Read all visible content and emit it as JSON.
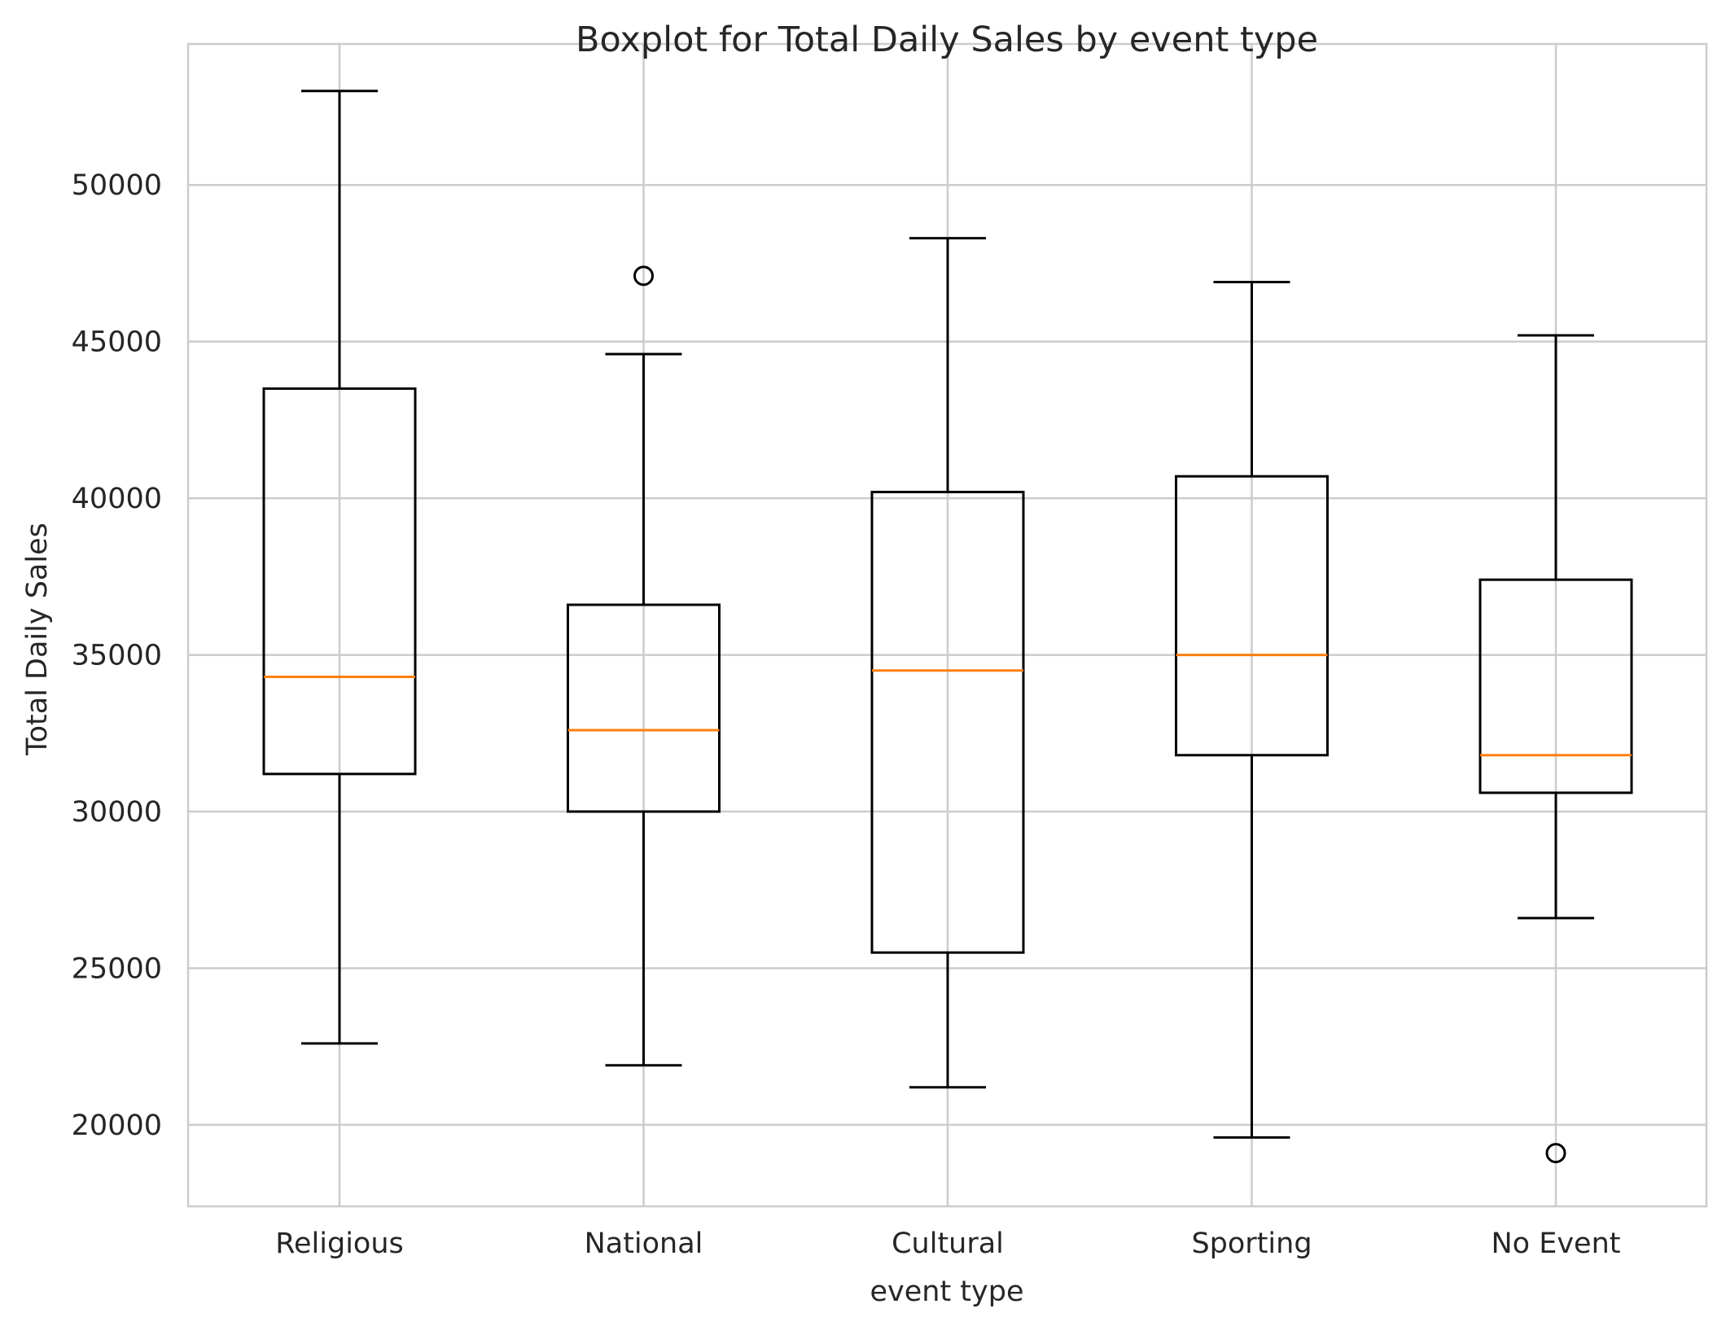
{
  "chart_data": {
    "type": "box",
    "title": "Boxplot for Total Daily Sales by event type",
    "xlabel": "event type",
    "ylabel": "Total Daily Sales",
    "categories": [
      "Religious",
      "National",
      "Cultural",
      "Sporting",
      "No Event"
    ],
    "ylim": [
      17400,
      54500
    ],
    "yticks": [
      20000,
      25000,
      30000,
      35000,
      40000,
      45000,
      50000
    ],
    "ytick_labels": [
      "20000",
      "25000",
      "30000",
      "35000",
      "40000",
      "45000",
      "50000"
    ],
    "grid": true,
    "boxes": [
      {
        "whisker_low": 22600,
        "q1": 31200,
        "median": 34300,
        "q3": 43500,
        "whisker_high": 53000,
        "outliers": []
      },
      {
        "whisker_low": 21900,
        "q1": 30000,
        "median": 32600,
        "q3": 36600,
        "whisker_high": 44600,
        "outliers": [
          47100
        ]
      },
      {
        "whisker_low": 21200,
        "q1": 25500,
        "median": 34500,
        "q3": 40200,
        "whisker_high": 48300,
        "outliers": []
      },
      {
        "whisker_low": 19600,
        "q1": 31800,
        "median": 35000,
        "q3": 40700,
        "whisker_high": 46900,
        "outliers": []
      },
      {
        "whisker_low": 26600,
        "q1": 30600,
        "median": 31800,
        "q3": 37400,
        "whisker_high": 45200,
        "outliers": [
          19100
        ]
      }
    ],
    "colors": {
      "box": "#000000",
      "median": "#ff7f0e",
      "grid": "#cccccc",
      "frame": "#cccccc"
    }
  }
}
